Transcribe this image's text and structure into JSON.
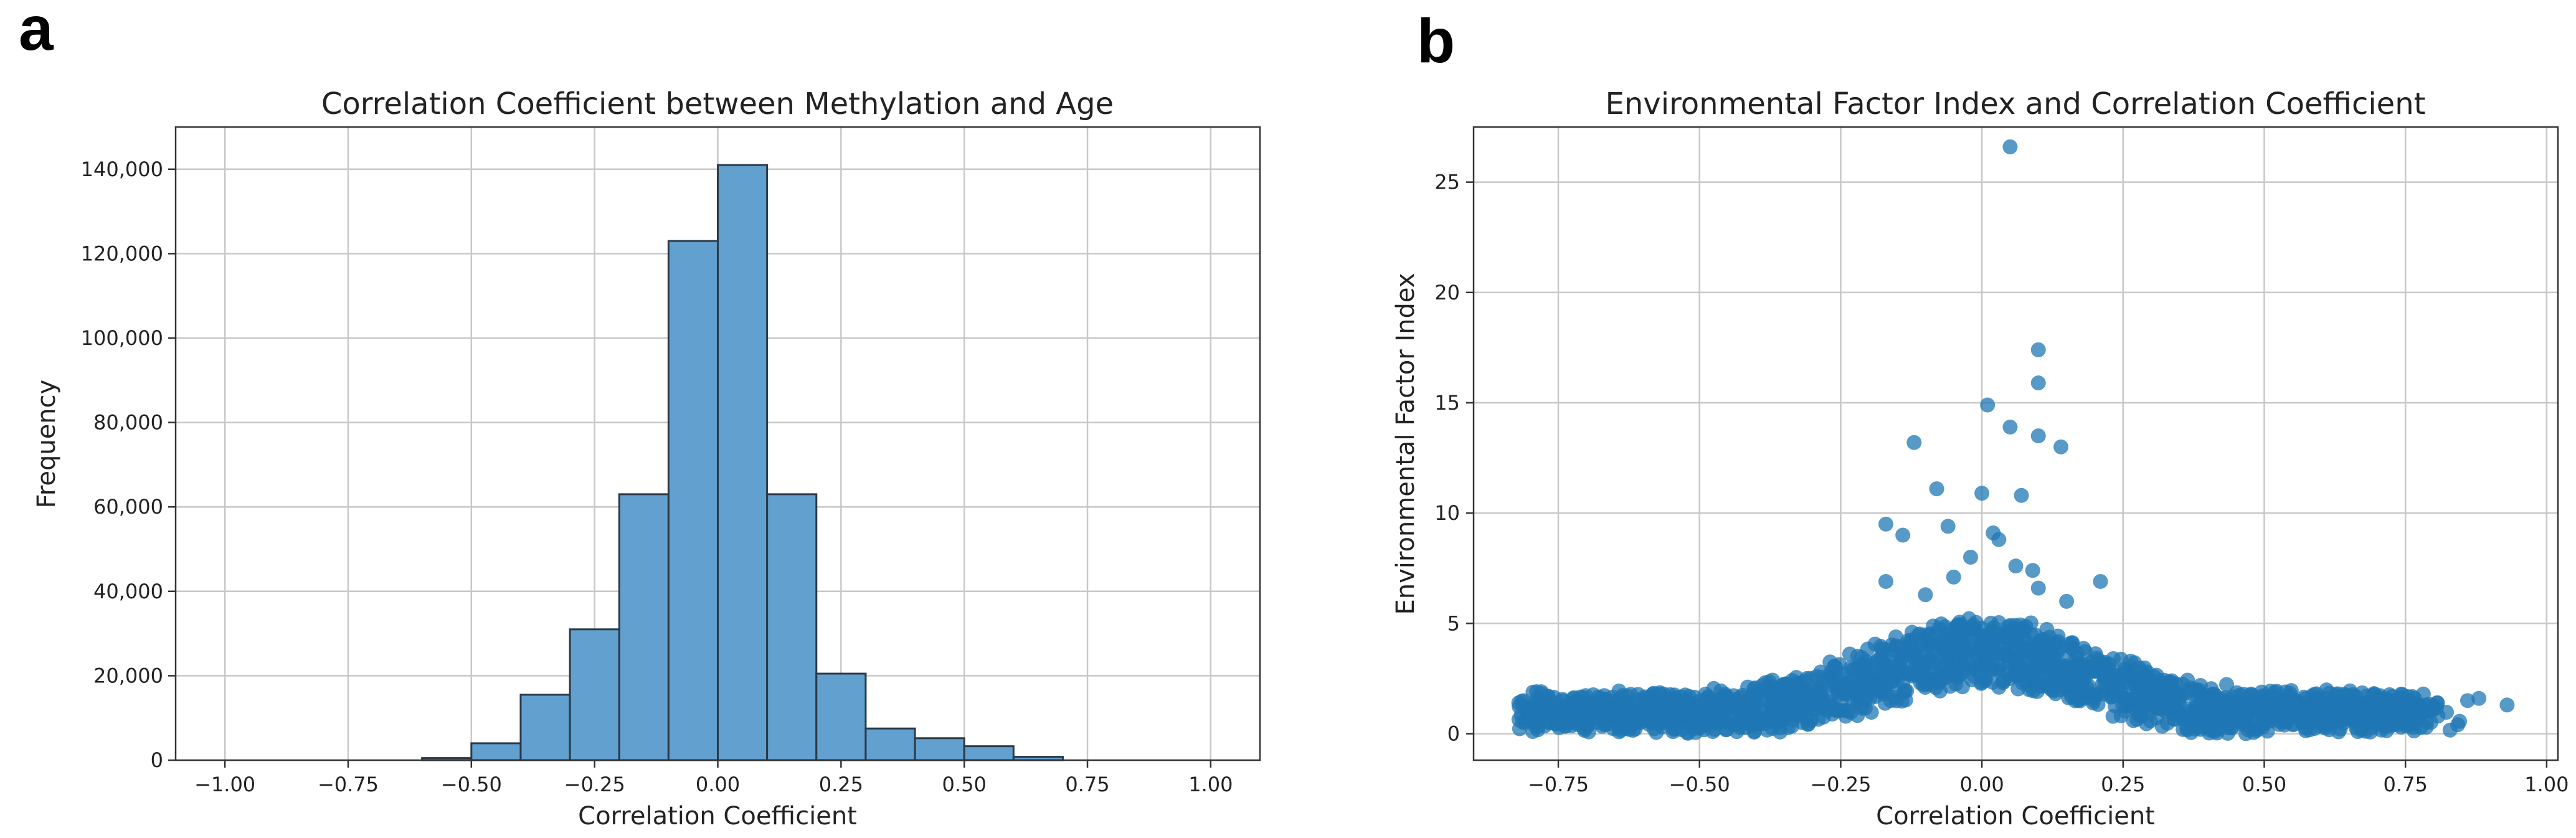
{
  "panels": {
    "a": {
      "letter": "a"
    },
    "b": {
      "letter": "b"
    }
  },
  "chart_data": [
    {
      "type": "bar",
      "subtype": "histogram",
      "title": "Correlation Coefficient between Methylation and Age",
      "xlabel": "Correlation Coefficient",
      "ylabel": "Frequency",
      "xlim": [
        -1.1,
        1.1
      ],
      "ylim": [
        0,
        150000
      ],
      "xticks": [
        -1.0,
        -0.75,
        -0.5,
        -0.25,
        0.0,
        0.25,
        0.5,
        0.75,
        1.0
      ],
      "xtick_labels": [
        "−1.00",
        "−0.75",
        "−0.50",
        "−0.25",
        "0.00",
        "0.25",
        "0.50",
        "0.75",
        "1.00"
      ],
      "yticks": [
        0,
        20000,
        40000,
        60000,
        80000,
        100000,
        120000,
        140000
      ],
      "ytick_labels": [
        "0",
        "20,000",
        "40,000",
        "60,000",
        "80,000",
        "100,000",
        "120,000",
        "140,000"
      ],
      "grid": true,
      "bin_edges": [
        -1.0,
        -0.9,
        -0.8,
        -0.7,
        -0.6,
        -0.5,
        -0.4,
        -0.3,
        -0.2,
        -0.1,
        0.0,
        0.1,
        0.2,
        0.3,
        0.4,
        0.5,
        0.6,
        0.7,
        0.8,
        0.9,
        1.0
      ],
      "values": [
        0,
        0,
        0,
        0,
        500,
        4000,
        15500,
        31000,
        63000,
        123000,
        141000,
        63000,
        20500,
        7500,
        5200,
        3300,
        800,
        0,
        0,
        0
      ],
      "color": "#62a0cf",
      "edgecolor": "#2a3a48"
    },
    {
      "type": "scatter",
      "title": "Environmental Factor Index and Correlation Coefficient",
      "xlabel": "Correlation Coefficient",
      "ylabel": "Environmental Factor Index",
      "xlim": [
        -0.9,
        1.02
      ],
      "ylim": [
        -1.2,
        27.5
      ],
      "xticks": [
        -0.75,
        -0.5,
        -0.25,
        0.0,
        0.25,
        0.5,
        0.75,
        1.0
      ],
      "xtick_labels": [
        "−0.75",
        "−0.50",
        "−0.25",
        "0.00",
        "0.25",
        "0.50",
        "0.75",
        "1.00"
      ],
      "yticks": [
        0,
        5,
        10,
        15,
        20,
        25
      ],
      "ytick_labels": [
        "0",
        "5",
        "10",
        "15",
        "20",
        "25"
      ],
      "grid": true,
      "color": "#1f77b4",
      "notable_points": [
        [
          0.05,
          26.6
        ],
        [
          0.1,
          17.4
        ],
        [
          0.1,
          15.9
        ],
        [
          0.01,
          14.9
        ],
        [
          0.05,
          13.9
        ],
        [
          0.1,
          13.5
        ],
        [
          0.14,
          13.0
        ],
        [
          -0.12,
          13.2
        ],
        [
          -0.08,
          11.1
        ],
        [
          0.0,
          10.9
        ],
        [
          0.07,
          10.8
        ],
        [
          -0.06,
          9.4
        ],
        [
          0.02,
          9.1
        ],
        [
          -0.17,
          9.5
        ],
        [
          -0.14,
          9.0
        ],
        [
          0.03,
          8.8
        ],
        [
          -0.02,
          8.0
        ],
        [
          0.06,
          7.6
        ],
        [
          0.09,
          7.4
        ],
        [
          -0.05,
          7.1
        ],
        [
          0.21,
          6.9
        ],
        [
          -0.17,
          6.9
        ],
        [
          0.1,
          6.6
        ],
        [
          0.15,
          6.0
        ],
        [
          -0.1,
          6.3
        ],
        [
          -0.82,
          1.4
        ],
        [
          -0.78,
          1.9
        ],
        [
          0.88,
          1.6
        ],
        [
          0.93,
          1.3
        ],
        [
          0.86,
          1.5
        ]
      ],
      "bulk_cloud": {
        "x_range": [
          -0.82,
          0.94
        ],
        "y_base": 1.6,
        "y_peak_at_x0": 5.0,
        "point_count_approx": 2000
      }
    }
  ]
}
